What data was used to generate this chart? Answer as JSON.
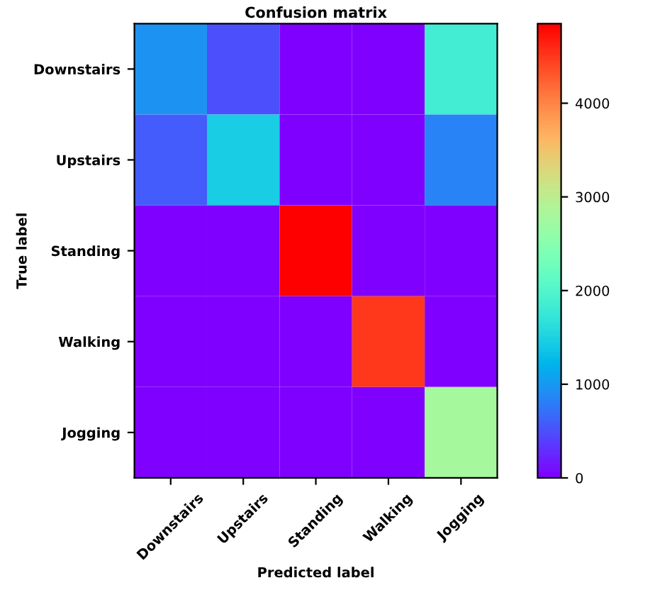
{
  "chart_data": {
    "type": "heatmap",
    "title": "Confusion matrix",
    "xlabel": "Predicted label",
    "ylabel": "True label",
    "categories": [
      "Downstairs",
      "Upstairs",
      "Standing",
      "Walking",
      "Jogging"
    ],
    "y_categories": [
      "Downstairs",
      "Upstairs",
      "Standing",
      "Walking",
      "Jogging"
    ],
    "cells": [
      [
        950,
        500,
        0,
        0,
        1850
      ],
      [
        580,
        1450,
        0,
        0,
        850
      ],
      [
        0,
        0,
        4850,
        0,
        0
      ],
      [
        0,
        0,
        0,
        4500,
        0
      ],
      [
        0,
        0,
        0,
        0,
        2800
      ]
    ],
    "clim": [
      0,
      4850
    ],
    "cticks": [
      0,
      1000,
      2000,
      3000,
      4000
    ]
  }
}
